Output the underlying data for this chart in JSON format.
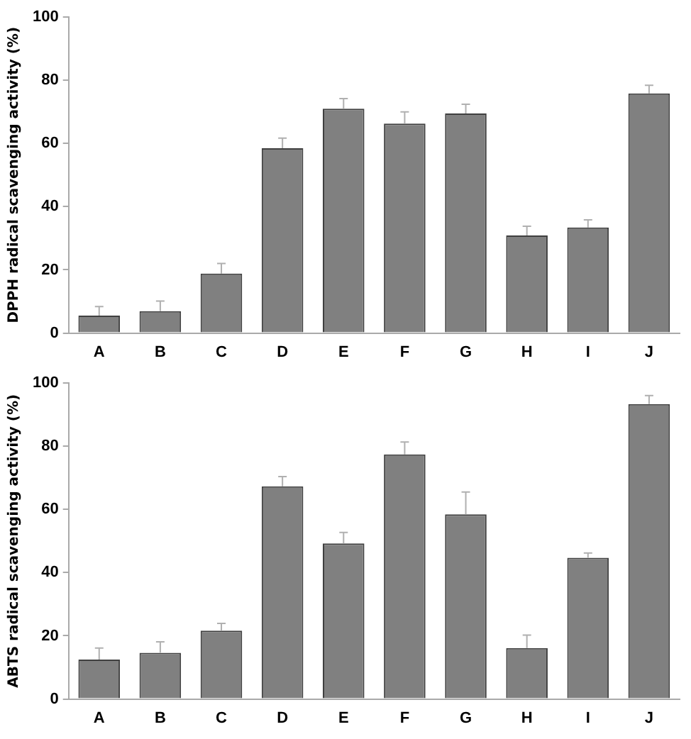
{
  "chart_data": [
    {
      "type": "bar",
      "ylabel": "DPPH radical scavenging activity (%)",
      "categories": [
        "A",
        "B",
        "C",
        "D",
        "E",
        "F",
        "G",
        "H",
        "I",
        "J"
      ],
      "values": [
        5.5,
        6.9,
        18.8,
        58.5,
        71,
        66.3,
        69.5,
        30.9,
        33.4,
        75.8
      ],
      "errors": [
        [
          5.5,
          8.4
        ],
        [
          6.9,
          10.1
        ],
        [
          18.8,
          22
        ],
        [
          58.5,
          61.7
        ],
        [
          71,
          74.2
        ],
        [
          66.3,
          70
        ],
        [
          69.5,
          72.4
        ],
        [
          30.9,
          33.8
        ],
        [
          33.4,
          35.8
        ],
        [
          75.8,
          78.4
        ]
      ],
      "color": "#808080",
      "ylim": [
        0,
        100
      ],
      "yticks": [
        0,
        20,
        40,
        60,
        80,
        100
      ],
      "grid": false,
      "legend": false
    },
    {
      "type": "bar",
      "ylabel": "ABTS radical scavenging activity (%)",
      "categories": [
        "A",
        "B",
        "C",
        "D",
        "E",
        "F",
        "G",
        "H",
        "I",
        "J"
      ],
      "values": [
        12.5,
        14.6,
        21.6,
        67.3,
        49.2,
        77.4,
        58.4,
        16.1,
        44.7,
        93.3
      ],
      "errors": [
        [
          12.5,
          16.1
        ],
        [
          14.6,
          18.1
        ],
        [
          21.6,
          23.9
        ],
        [
          67.3,
          70.4
        ],
        [
          49.2,
          52.7
        ],
        [
          77.4,
          81.3
        ],
        [
          58.4,
          65.5
        ],
        [
          16.1,
          20.2
        ],
        [
          44.7,
          46.2
        ],
        [
          93.3,
          96
        ]
      ],
      "color": "#808080",
      "ylim": [
        0,
        100
      ],
      "yticks": [
        0,
        20,
        40,
        60,
        80,
        100
      ],
      "grid": false,
      "legend": false
    }
  ]
}
